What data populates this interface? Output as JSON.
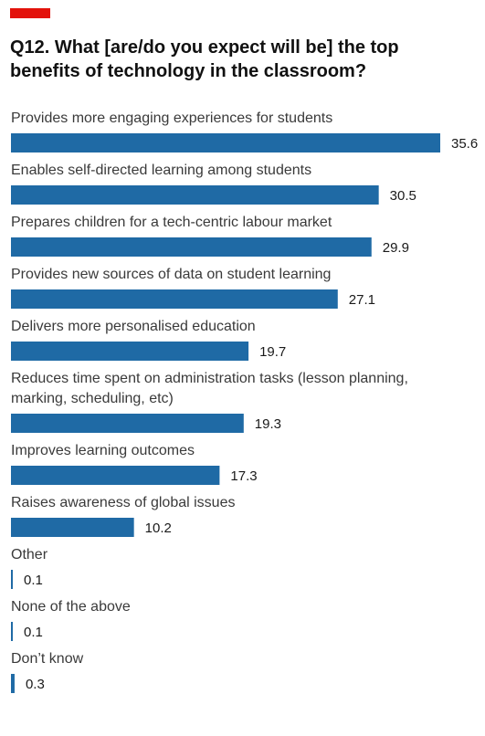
{
  "colors": {
    "accent": "#e3120b",
    "bar": "#1f6aa5"
  },
  "chart_data": {
    "type": "bar",
    "orientation": "horizontal",
    "title": "Q12. What [are/do you expect will be] the top benefits of technology in the classroom?",
    "categories": [
      "Provides more engaging experiences for students",
      "Enables self-directed learning among students",
      "Prepares children for a tech-centric labour market",
      "Provides new sources of data on student learning",
      "Delivers more personalised education",
      "Reduces time spent on administration tasks (lesson planning, marking, scheduling, etc)",
      "Improves learning outcomes",
      "Raises awareness of global issues",
      "Other",
      "None of the above",
      "Don’t know"
    ],
    "values": [
      35.6,
      30.5,
      29.9,
      27.1,
      19.7,
      19.3,
      17.3,
      10.2,
      0.1,
      0.1,
      0.3
    ],
    "value_labels": [
      "35.6",
      "30.5",
      "29.9",
      "27.1",
      "19.7",
      "19.3",
      "17.3",
      "10.2",
      "0.1",
      "0.1",
      "0.3"
    ],
    "xlim": [
      0,
      35.6
    ],
    "grid": false
  }
}
